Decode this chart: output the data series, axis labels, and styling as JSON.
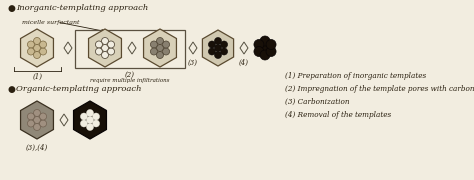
{
  "bg_color": "#f2ede0",
  "text_color": "#2a2010",
  "title1": "Inorganic-templating approach",
  "title2": "Organic-templating approach",
  "legend1": "(1) Preparation of inorganic templates",
  "legend2": "(2) Impregnation of the template pores with carbon precursors",
  "legend3": "(3) Carbonization",
  "legend4": "(4) Removal of the templates",
  "micelle_label": "micelle surfactant",
  "step1_label": "(1)",
  "step2_label": "(2)",
  "step3_label": "(3)",
  "step4_label": "(4)",
  "organic_label": "(3),(4)",
  "multiple_label": "require multiple infiltrations"
}
